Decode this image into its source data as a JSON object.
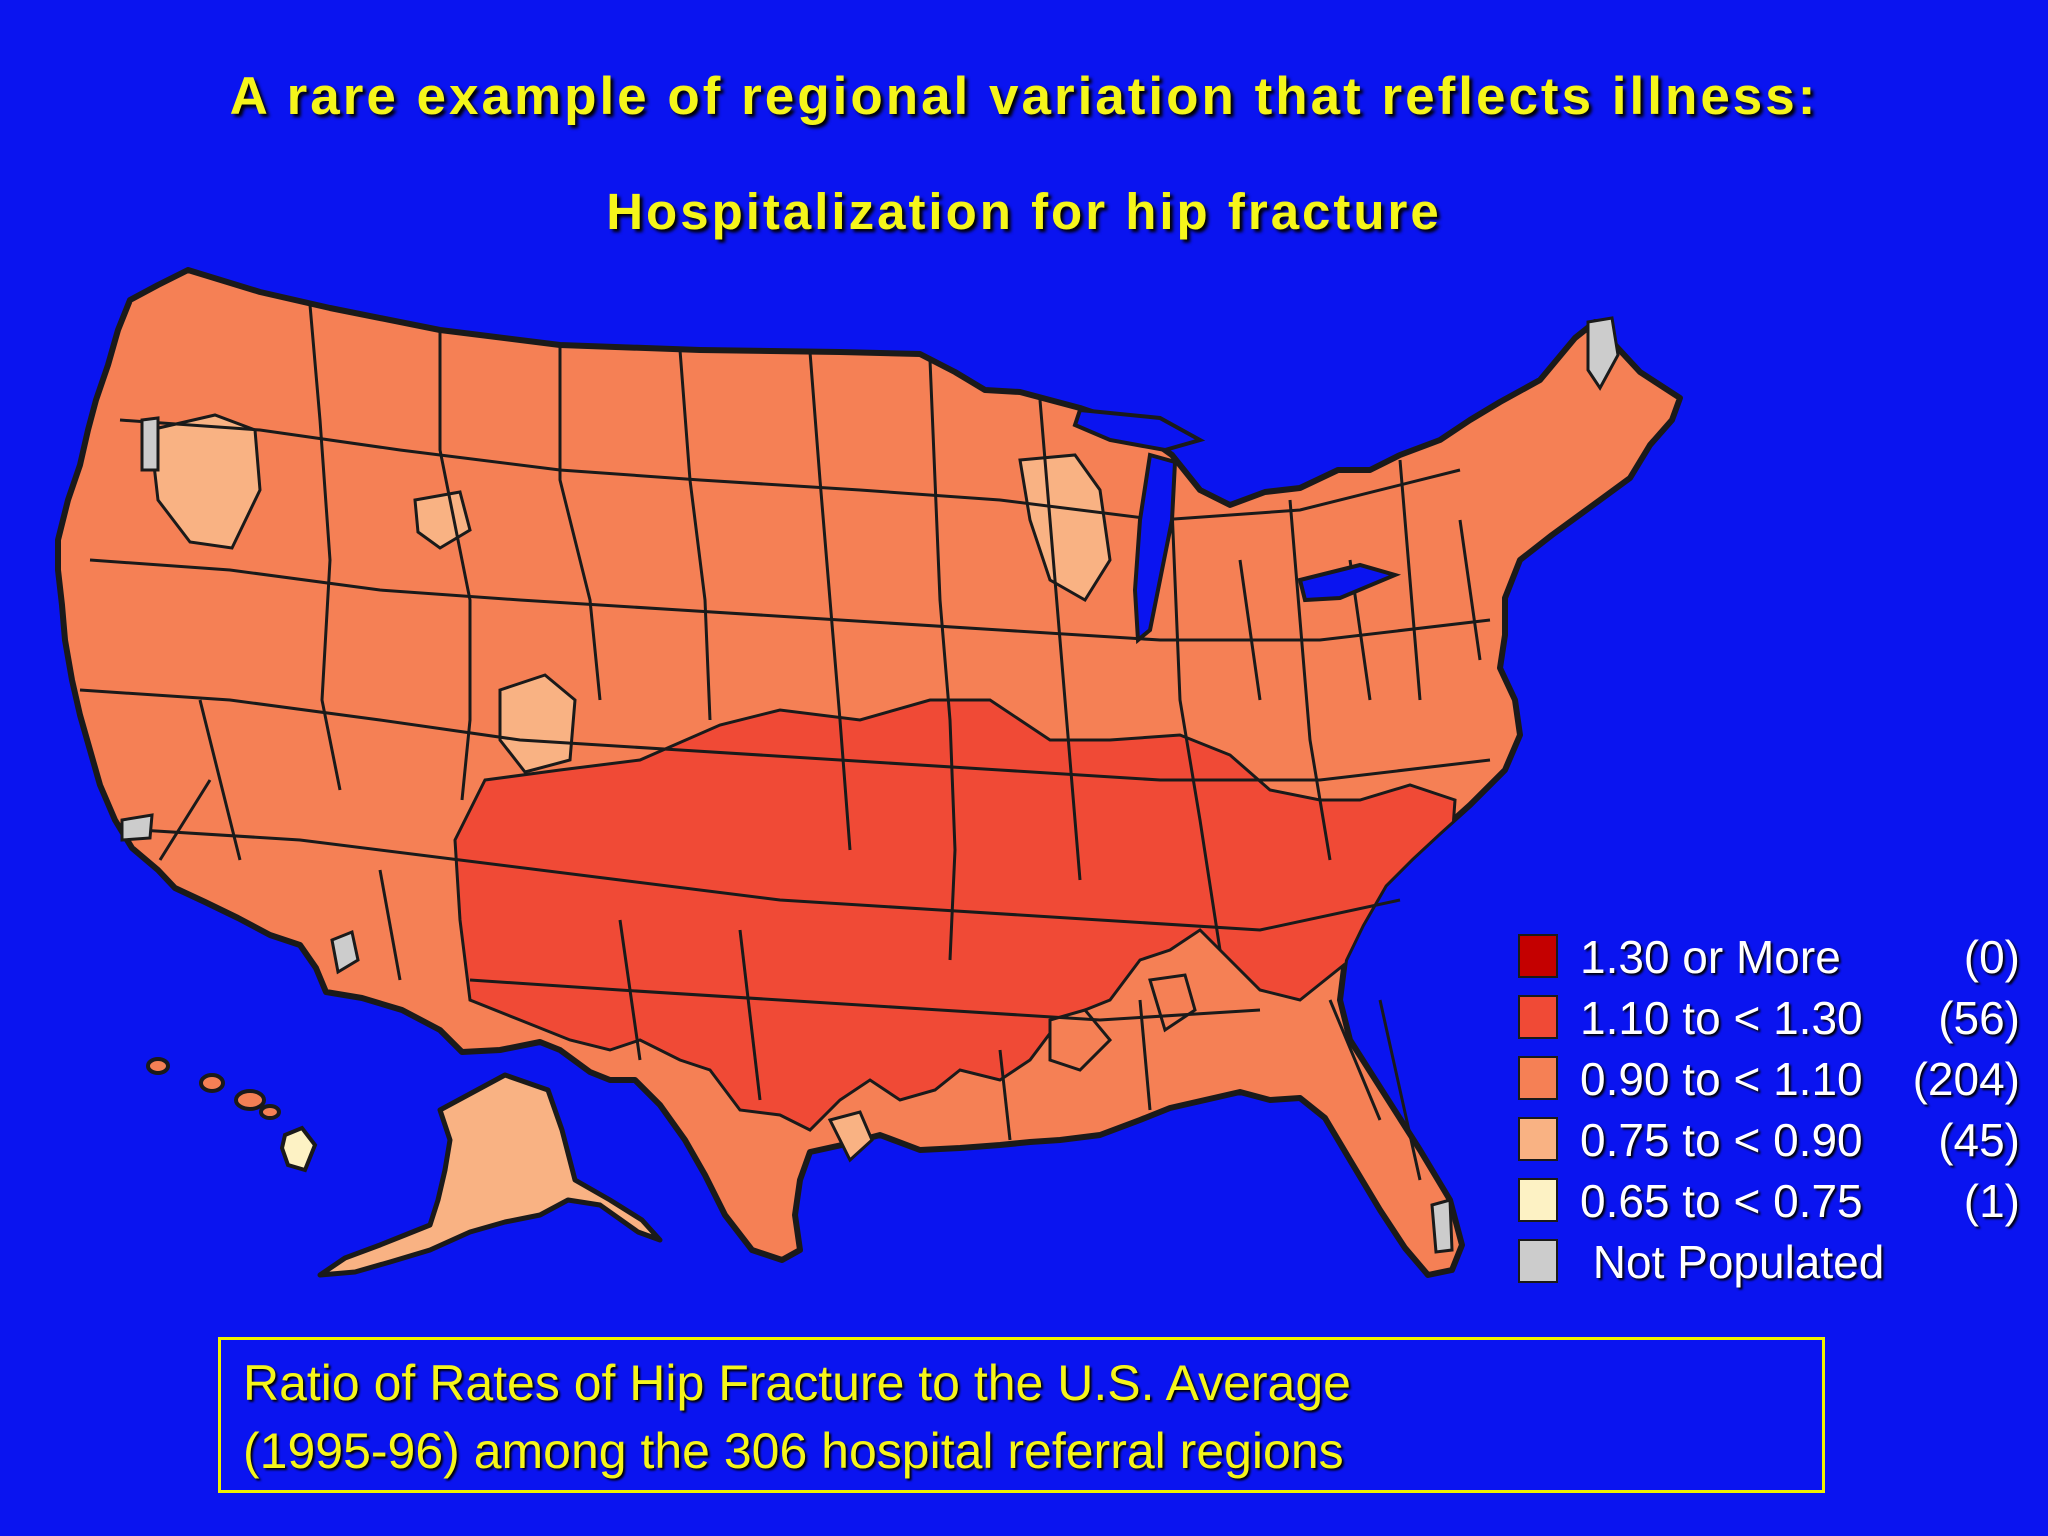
{
  "title": "A rare example of regional variation that reflects illness:",
  "subtitle": "Hospitalization for hip fracture",
  "colors": {
    "background": "#0a14f0",
    "title_text": "#f5f51a",
    "border": "#1a1a1a"
  },
  "legend": {
    "items": [
      {
        "range": "1.30 or More",
        "count": "(0)",
        "color": "#c40000"
      },
      {
        "range": "1.10 to <  1.30",
        "count": "(56)",
        "color": "#f04a36"
      },
      {
        "range": "0.90 to <  1.10",
        "count": "(204)",
        "color": "#f58055"
      },
      {
        "range": "0.75 to <  0.90",
        "count": "(45)",
        "color": "#f9b283"
      },
      {
        "range": "0.65 to <  0.75",
        "count": "(1)",
        "color": "#fdf2c4"
      },
      {
        "range": " Not Populated",
        "count": "",
        "color": "#cccccc"
      }
    ]
  },
  "caption": {
    "line1": "Ratio of Rates of Hip Fracture to the U.S. Average",
    "line2": "(1995-96) among the 306 hospital referral regions"
  }
}
